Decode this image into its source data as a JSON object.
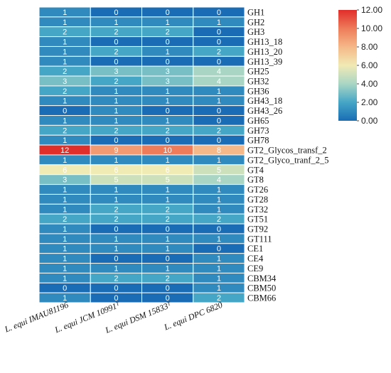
{
  "chart_data": {
    "type": "heatmap",
    "columns": [
      "L. equi IMAU81196",
      "L. equi JCM 10991ᵀ",
      "L. equi DSM 15833ᵀ",
      "L. equi DPC 6820"
    ],
    "rows": [
      "GH1",
      "GH2",
      "GH3",
      "GH13_18",
      "GH13_20",
      "GH13_39",
      "GH25",
      "GH32",
      "GH36",
      "GH43_18",
      "GH43_26",
      "GH65",
      "GH73",
      "GH78",
      "GT2_Glycos_transf_2",
      "GT2_Glyco_tranf_2_5",
      "GT4",
      "GT8",
      "GT26",
      "GT28",
      "GT32",
      "GT51",
      "GT92",
      "GT111",
      "CE1",
      "CE4",
      "CE9",
      "CBM34",
      "CBM50",
      "CBM66"
    ],
    "values": [
      [
        1,
        0,
        0,
        0
      ],
      [
        1,
        1,
        1,
        1
      ],
      [
        2,
        2,
        2,
        0
      ],
      [
        1,
        0,
        0,
        0
      ],
      [
        1,
        2,
        1,
        2
      ],
      [
        1,
        0,
        0,
        0
      ],
      [
        2,
        3,
        3,
        4
      ],
      [
        3,
        2,
        3,
        4
      ],
      [
        2,
        1,
        1,
        1
      ],
      [
        1,
        1,
        1,
        1
      ],
      [
        0,
        1,
        0,
        0
      ],
      [
        1,
        1,
        1,
        0
      ],
      [
        2,
        2,
        2,
        2
      ],
      [
        1,
        0,
        0,
        0
      ],
      [
        12,
        9,
        10,
        8
      ],
      [
        1,
        1,
        1,
        1
      ],
      [
        6,
        6,
        6,
        5
      ],
      [
        3,
        5,
        5,
        4
      ],
      [
        1,
        1,
        1,
        1
      ],
      [
        1,
        1,
        1,
        1
      ],
      [
        1,
        2,
        2,
        1
      ],
      [
        2,
        2,
        2,
        2
      ],
      [
        1,
        0,
        0,
        0
      ],
      [
        1,
        1,
        1,
        1
      ],
      [
        1,
        1,
        1,
        0
      ],
      [
        1,
        0,
        0,
        1
      ],
      [
        1,
        1,
        1,
        1
      ],
      [
        1,
        2,
        2,
        1
      ],
      [
        0,
        0,
        0,
        1
      ],
      [
        1,
        0,
        0,
        2
      ]
    ],
    "colorbar": {
      "ticks": [
        "0.00",
        "2.00",
        "4.00",
        "6.00",
        "8.00",
        "10.00",
        "12.00"
      ],
      "min": 0,
      "max": 12,
      "colors": [
        "#1a6db5",
        "#45a6c6",
        "#a9d6c4",
        "#f0eab4",
        "#f5b888",
        "#ee7c5a",
        "#e02e2a"
      ]
    }
  }
}
